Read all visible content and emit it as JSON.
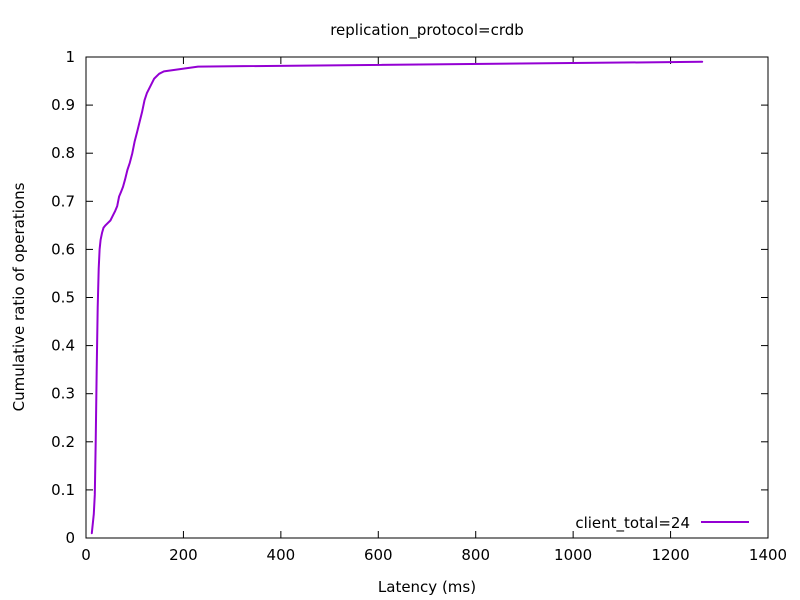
{
  "chart_data": {
    "type": "line",
    "title": "replication_protocol=crdb",
    "xlabel": "Latency (ms)",
    "ylabel": "Cumulative ratio of operations",
    "xlim": [
      0,
      1400
    ],
    "ylim": [
      0,
      1
    ],
    "x_ticks": [
      0,
      200,
      400,
      600,
      800,
      1000,
      1200,
      1400
    ],
    "y_ticks": [
      "0",
      "0.1",
      "0.2",
      "0.3",
      "0.4",
      "0.5",
      "0.6",
      "0.7",
      "0.8",
      "0.9",
      "1"
    ],
    "grid": false,
    "legend_position": "bottom-right",
    "series": [
      {
        "name": "client_total=24",
        "color": "#9400d3",
        "x": [
          12,
          14,
          16,
          18,
          20,
          22,
          24,
          26,
          28,
          30,
          33,
          36,
          40,
          45,
          50,
          55,
          60,
          64,
          68,
          72,
          76,
          80,
          85,
          90,
          95,
          100,
          105,
          110,
          115,
          120,
          125,
          130,
          140,
          150,
          160,
          230,
          1265
        ],
        "y": [
          0.01,
          0.03,
          0.05,
          0.09,
          0.2,
          0.35,
          0.48,
          0.56,
          0.6,
          0.62,
          0.635,
          0.645,
          0.65,
          0.655,
          0.66,
          0.67,
          0.68,
          0.69,
          0.71,
          0.72,
          0.73,
          0.745,
          0.765,
          0.78,
          0.8,
          0.825,
          0.845,
          0.865,
          0.885,
          0.91,
          0.925,
          0.935,
          0.955,
          0.965,
          0.97,
          0.98,
          0.99
        ]
      }
    ]
  }
}
